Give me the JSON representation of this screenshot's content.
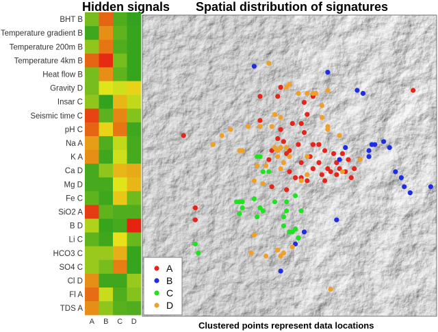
{
  "titles": {
    "left": "Hidden signals",
    "right": "Spatial distribution of signatures"
  },
  "caption": "Clustered points represent data locations",
  "chart_data": [
    {
      "type": "heatmap",
      "title": "Hidden signals",
      "rows": [
        "BHT B",
        "Temperature gradient B",
        "Temperature 200m B",
        "Temperature 4km B",
        "Heat flow B",
        "Gravity D",
        "Insar C",
        "Seismic time C",
        "pH C",
        "Na A",
        "K A",
        "Ca D",
        "Mg D",
        "Fe C",
        "SiO2 A",
        "B D",
        "Li C",
        "HCO3 C",
        "SO4 C",
        "Cl D",
        "Fl A",
        "TDS A"
      ],
      "columns": [
        "A",
        "B",
        "C",
        "D"
      ],
      "values": [
        [
          0.22,
          0.82,
          0.12,
          0.05
        ],
        [
          0.08,
          0.72,
          0.16,
          0.06
        ],
        [
          0.28,
          0.78,
          0.12,
          0.06
        ],
        [
          0.82,
          0.96,
          0.22,
          0.06
        ],
        [
          0.22,
          0.72,
          0.16,
          0.06
        ],
        [
          0.22,
          0.48,
          0.44,
          0.55
        ],
        [
          0.28,
          0.05,
          0.62,
          0.4
        ],
        [
          0.9,
          0.15,
          0.74,
          0.25
        ],
        [
          0.82,
          0.55,
          0.78,
          0.08
        ],
        [
          0.68,
          0.12,
          0.4,
          0.1
        ],
        [
          0.72,
          0.08,
          0.44,
          0.1
        ],
        [
          0.1,
          0.28,
          0.62,
          0.65
        ],
        [
          0.1,
          0.1,
          0.48,
          0.62
        ],
        [
          0.16,
          0.08,
          0.58,
          0.2
        ],
        [
          0.92,
          0.16,
          0.12,
          0.12
        ],
        [
          0.36,
          0.06,
          0.1,
          0.98
        ],
        [
          0.16,
          0.08,
          0.52,
          0.18
        ],
        [
          0.3,
          0.3,
          0.64,
          0.06
        ],
        [
          0.3,
          0.22,
          0.76,
          0.06
        ],
        [
          0.72,
          0.08,
          0.08,
          0.3
        ],
        [
          0.8,
          0.42,
          0.12,
          0.25
        ],
        [
          0.72,
          0.28,
          0.14,
          0.12
        ]
      ],
      "colormap": {
        "low": "#1f9b1f",
        "mid": "#e8e81a",
        "high": "#e51b10"
      }
    },
    {
      "type": "scatter",
      "title": "Spatial distribution of signatures",
      "xlabel": "Clustered points represent data locations",
      "legend_position": "bottom-left",
      "series": [
        {
          "name": "A",
          "color": "#e2261c",
          "x": [
            0.22,
            0.51,
            0.39,
            0.5,
            0.43,
            0.44,
            0.36,
            0.48,
            0.53,
            0.54,
            0.62,
            0.58,
            0.66,
            0.58,
            0.56,
            0.63,
            0.53,
            0.58,
            0.62,
            0.69,
            0.7,
            0.67,
            0.65,
            0.67,
            0.66,
            0.61,
            0.62,
            0.56,
            0.58,
            0.53,
            0.6,
            0.56,
            0.52,
            0.25,
            0.24,
            0.44,
            0.47,
            0.9,
            0.63,
            0.61,
            0.65,
            0.68,
            0.7,
            0.72,
            0.63,
            0.68,
            0.74,
            0.54
          ],
          "y": [
            0.82,
            0.75,
            0.55,
            0.55,
            0.52,
            0.5,
            0.44,
            0.44,
            0.44,
            0.42,
            0.4,
            0.4,
            0.4,
            0.38,
            0.38,
            0.36,
            0.36,
            0.34,
            0.34,
            0.38,
            0.36,
            0.33,
            0.32,
            0.3,
            0.28,
            0.28,
            0.26,
            0.26,
            0.24,
            0.22,
            0.22,
            0.2,
            0.18,
            0.4,
            0.38,
            0.48,
            0.24,
            0.84,
            0.19,
            0.15,
            0.13,
            0.12,
            0.1,
            0.08,
            0.05,
            0.25,
            0.28,
            0.31
          ]
        },
        {
          "name": "B",
          "color": "#1f2ee0",
          "x": [
            0.38,
            0.61,
            0.73,
            0.74,
            0.79,
            0.8,
            0.82,
            0.76,
            0.83,
            0.85,
            0.87,
            0.87,
            0.89,
            0.98,
            0.73,
            0.59,
            0.54,
            0.53,
            0.51,
            0.47,
            0.46,
            0.45
          ],
          "y": [
            0.88,
            0.15,
            0.89,
            0.27,
            0.33,
            0.33,
            0.34,
            0.4,
            0.44,
            0.53,
            0.57,
            0.56,
            0.6,
            0.6,
            0.47,
            0.68,
            0.7,
            0.73,
            0.73,
            0.75,
            0.88,
            0.9
          ],
          "note": "approximate"
        },
        {
          "name": "C",
          "color": "#22e022",
          "x": [
            0.44,
            0.38,
            0.38,
            0.41,
            0.35,
            0.34,
            0.36,
            0.37,
            0.39,
            0.4,
            0.42,
            0.43,
            0.44,
            0.45,
            0.51,
            0.52,
            0.53,
            0.54,
            0.55,
            0.56,
            0.57,
            0.49,
            0.45,
            0.2,
            0.21,
            0.22
          ],
          "y": [
            0.42,
            0.5,
            0.48,
            0.59,
            0.62,
            0.65,
            0.67,
            0.64,
            0.63,
            0.66,
            0.66,
            0.67,
            0.7,
            0.71,
            0.74,
            0.71,
            0.7,
            0.71,
            0.69,
            0.7,
            0.71,
            0.72,
            0.59,
            0.77,
            0.79,
            0.81
          ],
          "note": "approximate"
        }
      ]
    }
  ],
  "scatter_points": {
    "A": [
      [
        0.14,
        0.4
      ],
      [
        0.4,
        0.27
      ],
      [
        0.4,
        0.35
      ],
      [
        0.48,
        0.42
      ],
      [
        0.5,
        0.45
      ],
      [
        0.44,
        0.45
      ],
      [
        0.55,
        0.39
      ],
      [
        0.47,
        0.24
      ],
      [
        0.46,
        0.27
      ],
      [
        0.46,
        0.41
      ],
      [
        0.47,
        0.38
      ],
      [
        0.56,
        0.33
      ],
      [
        0.58,
        0.27
      ],
      [
        0.55,
        0.29
      ],
      [
        0.5,
        0.52
      ],
      [
        0.52,
        0.54
      ],
      [
        0.54,
        0.54
      ],
      [
        0.56,
        0.55
      ],
      [
        0.58,
        0.51
      ],
      [
        0.6,
        0.49
      ],
      [
        0.61,
        0.53
      ],
      [
        0.62,
        0.55
      ],
      [
        0.63,
        0.51
      ],
      [
        0.64,
        0.52
      ],
      [
        0.66,
        0.53
      ],
      [
        0.67,
        0.51
      ],
      [
        0.69,
        0.52
      ],
      [
        0.71,
        0.54
      ],
      [
        0.7,
        0.48
      ],
      [
        0.68,
        0.46
      ],
      [
        0.62,
        0.45
      ],
      [
        0.58,
        0.43
      ],
      [
        0.53,
        0.43
      ],
      [
        0.49,
        0.46
      ],
      [
        0.54,
        0.49
      ],
      [
        0.18,
        0.64
      ],
      [
        0.18,
        0.68
      ],
      [
        0.44,
        0.57
      ],
      [
        0.49,
        0.58
      ],
      [
        0.92,
        0.25
      ],
      [
        0.51,
        0.36
      ],
      [
        0.54,
        0.36
      ],
      [
        0.57,
        0.47
      ],
      [
        0.43,
        0.48
      ],
      [
        0.6,
        0.43
      ],
      [
        0.66,
        0.49
      ],
      [
        0.72,
        0.51
      ],
      [
        0.65,
        0.46
      ]
    ],
    "B": [
      [
        0.38,
        0.17
      ],
      [
        0.63,
        0.19
      ],
      [
        0.73,
        0.25
      ],
      [
        0.75,
        0.26
      ],
      [
        0.77,
        0.45
      ],
      [
        0.78,
        0.43
      ],
      [
        0.79,
        0.43
      ],
      [
        0.82,
        0.42
      ],
      [
        0.84,
        0.44
      ],
      [
        0.86,
        0.52
      ],
      [
        0.88,
        0.54
      ],
      [
        0.89,
        0.57
      ],
      [
        0.91,
        0.59
      ],
      [
        0.98,
        0.57
      ],
      [
        0.77,
        0.47
      ],
      [
        0.69,
        0.44
      ],
      [
        0.67,
        0.48
      ],
      [
        0.66,
        0.68
      ],
      [
        0.55,
        0.72
      ],
      [
        0.53,
        0.74
      ],
      [
        0.52,
        0.76
      ],
      [
        0.47,
        0.85
      ]
    ],
    "C": [
      [
        0.43,
        0.52
      ],
      [
        0.39,
        0.47
      ],
      [
        0.4,
        0.47
      ],
      [
        0.41,
        0.52
      ],
      [
        0.34,
        0.62
      ],
      [
        0.32,
        0.62
      ],
      [
        0.33,
        0.62
      ],
      [
        0.34,
        0.64
      ],
      [
        0.33,
        0.66
      ],
      [
        0.38,
        0.61
      ],
      [
        0.4,
        0.64
      ],
      [
        0.39,
        0.67
      ],
      [
        0.45,
        0.62
      ],
      [
        0.49,
        0.62
      ],
      [
        0.49,
        0.65
      ],
      [
        0.48,
        0.67
      ],
      [
        0.48,
        0.7
      ],
      [
        0.5,
        0.72
      ],
      [
        0.52,
        0.71
      ],
      [
        0.51,
        0.72
      ],
      [
        0.53,
        0.74
      ],
      [
        0.54,
        0.65
      ],
      [
        0.52,
        0.6
      ],
      [
        0.18,
        0.76
      ],
      [
        0.19,
        0.79
      ],
      [
        0.41,
        0.65
      ]
    ],
    "D": [
      [
        0.43,
        0.16
      ],
      [
        0.49,
        0.24
      ],
      [
        0.5,
        0.23
      ],
      [
        0.53,
        0.26
      ],
      [
        0.56,
        0.26
      ],
      [
        0.58,
        0.26
      ],
      [
        0.59,
        0.26
      ],
      [
        0.63,
        0.25
      ],
      [
        0.61,
        0.3
      ],
      [
        0.61,
        0.34
      ],
      [
        0.47,
        0.34
      ],
      [
        0.4,
        0.37
      ],
      [
        0.44,
        0.37
      ],
      [
        0.45,
        0.33
      ],
      [
        0.36,
        0.37
      ],
      [
        0.42,
        0.5
      ],
      [
        0.46,
        0.45
      ],
      [
        0.46,
        0.47
      ],
      [
        0.47,
        0.44
      ],
      [
        0.49,
        0.44
      ],
      [
        0.5,
        0.47
      ],
      [
        0.48,
        0.49
      ],
      [
        0.47,
        0.51
      ],
      [
        0.56,
        0.47
      ],
      [
        0.56,
        0.53
      ],
      [
        0.54,
        0.55
      ],
      [
        0.63,
        0.37
      ],
      [
        0.63,
        0.38
      ],
      [
        0.67,
        0.4
      ],
      [
        0.68,
        0.52
      ],
      [
        0.74,
        0.48
      ],
      [
        0.34,
        0.45
      ],
      [
        0.39,
        0.5
      ],
      [
        0.27,
        0.4
      ],
      [
        0.3,
        0.38
      ],
      [
        0.24,
        0.43
      ],
      [
        0.38,
        0.73
      ],
      [
        0.37,
        0.79
      ],
      [
        0.46,
        0.78
      ],
      [
        0.47,
        0.8
      ],
      [
        0.48,
        0.79
      ],
      [
        0.51,
        0.77
      ],
      [
        0.42,
        0.8
      ],
      [
        0.64,
        0.91
      ],
      [
        0.33,
        0.45
      ],
      [
        0.41,
        0.56
      ],
      [
        0.45,
        0.44
      ],
      [
        0.38,
        0.55
      ]
    ]
  },
  "legend": [
    {
      "label": "A",
      "color": "#e2261c"
    },
    {
      "label": "B",
      "color": "#1f2ee0"
    },
    {
      "label": "C",
      "color": "#22e022"
    },
    {
      "label": "D",
      "color": "#eea02a"
    }
  ]
}
